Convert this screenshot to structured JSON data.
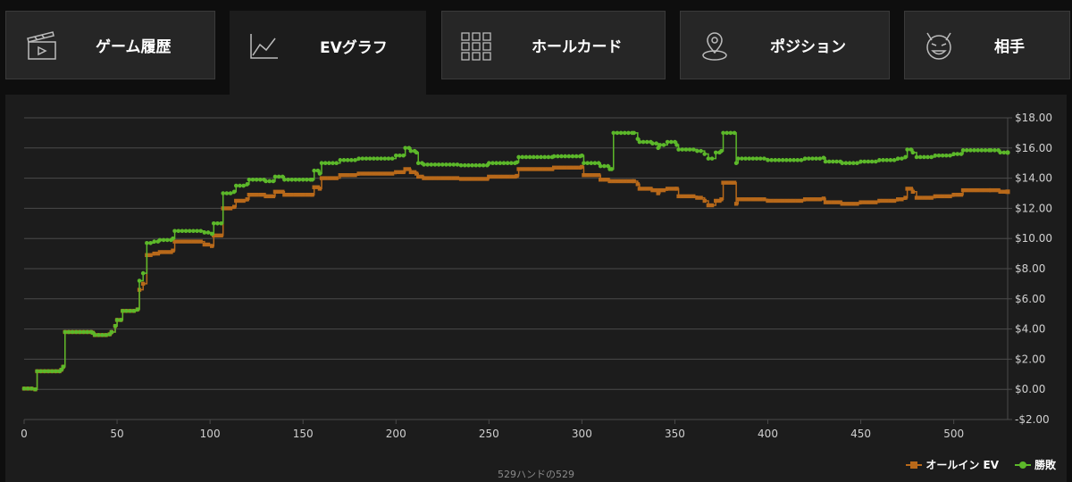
{
  "tabs": [
    {
      "label": "ゲーム履歴",
      "icon": "clapperboard-icon",
      "active": false
    },
    {
      "label": "EVグラフ",
      "icon": "line-chart-icon",
      "active": true
    },
    {
      "label": "ホールカード",
      "icon": "card-grid-icon",
      "active": false
    },
    {
      "label": "ポジション",
      "icon": "map-pin-icon",
      "active": false
    },
    {
      "label": "相手",
      "icon": "devil-face-icon",
      "active": false
    }
  ],
  "footer_note": "529ハンドの529",
  "colors": {
    "allin_ev": "#b8691a",
    "winnings": "#5cb82a",
    "grid": "#4a4a4a",
    "axis_text": "#d0d0d0"
  },
  "chart_data": {
    "type": "line",
    "title": "",
    "xlabel": "",
    "ylabel": "",
    "xlim": [
      0,
      529
    ],
    "ylim": [
      -2,
      18
    ],
    "x_ticks": [
      0,
      50,
      100,
      150,
      200,
      250,
      300,
      350,
      400,
      450,
      500
    ],
    "y_ticks": [
      -2,
      0,
      2,
      4,
      6,
      8,
      10,
      12,
      14,
      16,
      18
    ],
    "y_tick_labels": [
      "-$2.00",
      "$0.00",
      "$2.00",
      "$4.00",
      "$6.00",
      "$8.00",
      "$10.00",
      "$12.00",
      "$14.00",
      "$16.00",
      "$18.00"
    ],
    "grid": true,
    "legend_position": "bottom-right",
    "series": [
      {
        "name": "オールイン EV",
        "marker": "square",
        "points": [
          [
            0,
            0.05
          ],
          [
            6,
            0
          ],
          [
            7,
            1.2
          ],
          [
            20,
            1.3
          ],
          [
            21,
            1.5
          ],
          [
            22,
            3.8
          ],
          [
            37,
            3.75
          ],
          [
            38,
            3.6
          ],
          [
            46,
            3.65
          ],
          [
            47,
            3.8
          ],
          [
            49,
            4.2
          ],
          [
            50,
            4.6
          ],
          [
            53,
            5.2
          ],
          [
            61,
            5.3
          ],
          [
            62,
            6.6
          ],
          [
            64,
            7.0
          ],
          [
            66,
            8.9
          ],
          [
            70,
            9.0
          ],
          [
            73,
            9.1
          ],
          [
            80,
            9.2
          ],
          [
            81,
            9.8
          ],
          [
            97,
            9.6
          ],
          [
            101,
            9.5
          ],
          [
            102,
            10.2
          ],
          [
            106,
            10.2
          ],
          [
            107,
            12.0
          ],
          [
            113,
            12.1
          ],
          [
            114,
            12.5
          ],
          [
            120,
            12.6
          ],
          [
            121,
            12.9
          ],
          [
            130,
            12.8
          ],
          [
            135,
            13.1
          ],
          [
            140,
            12.9
          ],
          [
            144,
            12.9
          ],
          [
            155,
            12.9
          ],
          [
            156,
            13.4
          ],
          [
            159,
            13.3
          ],
          [
            160,
            14.0
          ],
          [
            170,
            14.2
          ],
          [
            180,
            14.3
          ],
          [
            200,
            14.4
          ],
          [
            205,
            14.6
          ],
          [
            208,
            14.4
          ],
          [
            211,
            14.3
          ],
          [
            212,
            14.1
          ],
          [
            215,
            14.0
          ],
          [
            235,
            13.95
          ],
          [
            250,
            14.1
          ],
          [
            265,
            14.15
          ],
          [
            266,
            14.6
          ],
          [
            285,
            14.7
          ],
          [
            300,
            14.75
          ],
          [
            301,
            14.2
          ],
          [
            310,
            13.9
          ],
          [
            315,
            13.8
          ],
          [
            328,
            13.8
          ],
          [
            330,
            13.6
          ],
          [
            331,
            13.3
          ],
          [
            338,
            13.2
          ],
          [
            341,
            13.0
          ],
          [
            342,
            13.2
          ],
          [
            346,
            13.3
          ],
          [
            351,
            13.3
          ],
          [
            352,
            12.8
          ],
          [
            362,
            12.7
          ],
          [
            366,
            12.5
          ],
          [
            368,
            12.2
          ],
          [
            372,
            12.5
          ],
          [
            375,
            12.6
          ],
          [
            376,
            13.7
          ],
          [
            382,
            13.7
          ],
          [
            383,
            12.3
          ],
          [
            384,
            12.6
          ],
          [
            400,
            12.5
          ],
          [
            420,
            12.6
          ],
          [
            430,
            12.65
          ],
          [
            431,
            12.4
          ],
          [
            440,
            12.3
          ],
          [
            450,
            12.4
          ],
          [
            460,
            12.5
          ],
          [
            470,
            12.6
          ],
          [
            474,
            12.7
          ],
          [
            475,
            13.3
          ],
          [
            478,
            13.1
          ],
          [
            480,
            12.7
          ],
          [
            490,
            12.8
          ],
          [
            500,
            12.9
          ],
          [
            505,
            13.2
          ],
          [
            520,
            13.2
          ],
          [
            525,
            13.1
          ],
          [
            529,
            13.1
          ]
        ]
      },
      {
        "name": "勝敗",
        "marker": "circle",
        "points": [
          [
            0,
            0.05
          ],
          [
            6,
            0
          ],
          [
            7,
            1.2
          ],
          [
            20,
            1.3
          ],
          [
            21,
            1.5
          ],
          [
            22,
            3.8
          ],
          [
            37,
            3.75
          ],
          [
            38,
            3.6
          ],
          [
            46,
            3.65
          ],
          [
            47,
            3.8
          ],
          [
            49,
            4.2
          ],
          [
            50,
            4.6
          ],
          [
            53,
            5.2
          ],
          [
            61,
            5.3
          ],
          [
            62,
            7.2
          ],
          [
            64,
            7.7
          ],
          [
            66,
            9.7
          ],
          [
            70,
            9.8
          ],
          [
            73,
            9.9
          ],
          [
            80,
            10.0
          ],
          [
            81,
            10.5
          ],
          [
            97,
            10.4
          ],
          [
            101,
            10.3
          ],
          [
            102,
            11.0
          ],
          [
            106,
            11.0
          ],
          [
            107,
            13.0
          ],
          [
            113,
            13.1
          ],
          [
            114,
            13.5
          ],
          [
            120,
            13.6
          ],
          [
            121,
            13.9
          ],
          [
            130,
            13.8
          ],
          [
            135,
            14.1
          ],
          [
            140,
            13.9
          ],
          [
            144,
            13.9
          ],
          [
            155,
            13.9
          ],
          [
            156,
            14.5
          ],
          [
            159,
            14.3
          ],
          [
            160,
            15.0
          ],
          [
            170,
            15.2
          ],
          [
            180,
            15.3
          ],
          [
            200,
            15.5
          ],
          [
            205,
            16.0
          ],
          [
            208,
            15.8
          ],
          [
            211,
            15.7
          ],
          [
            212,
            15.0
          ],
          [
            215,
            14.9
          ],
          [
            235,
            14.85
          ],
          [
            250,
            15.0
          ],
          [
            265,
            15.05
          ],
          [
            266,
            15.4
          ],
          [
            285,
            15.45
          ],
          [
            300,
            15.5
          ],
          [
            301,
            15.0
          ],
          [
            310,
            14.8
          ],
          [
            315,
            14.6
          ],
          [
            316,
            14.6
          ],
          [
            317,
            17.0
          ],
          [
            328,
            17.0
          ],
          [
            330,
            16.6
          ],
          [
            331,
            16.4
          ],
          [
            338,
            16.3
          ],
          [
            341,
            16.0
          ],
          [
            342,
            16.2
          ],
          [
            346,
            16.4
          ],
          [
            351,
            16.2
          ],
          [
            352,
            15.9
          ],
          [
            362,
            15.8
          ],
          [
            366,
            15.6
          ],
          [
            368,
            15.3
          ],
          [
            372,
            15.7
          ],
          [
            375,
            15.8
          ],
          [
            376,
            17.0
          ],
          [
            382,
            17.0
          ],
          [
            383,
            15.0
          ],
          [
            384,
            15.3
          ],
          [
            400,
            15.2
          ],
          [
            420,
            15.3
          ],
          [
            430,
            15.35
          ],
          [
            431,
            15.1
          ],
          [
            440,
            15.0
          ],
          [
            450,
            15.1
          ],
          [
            460,
            15.2
          ],
          [
            470,
            15.3
          ],
          [
            474,
            15.4
          ],
          [
            475,
            15.9
          ],
          [
            478,
            15.7
          ],
          [
            480,
            15.4
          ],
          [
            490,
            15.5
          ],
          [
            500,
            15.6
          ],
          [
            505,
            15.85
          ],
          [
            520,
            15.85
          ],
          [
            525,
            15.7
          ],
          [
            529,
            15.7
          ]
        ]
      }
    ]
  }
}
